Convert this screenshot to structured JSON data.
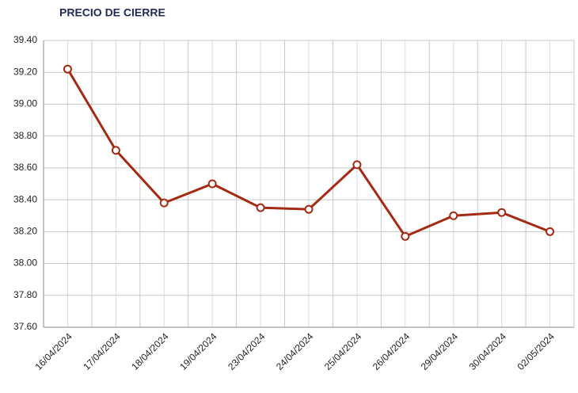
{
  "chart_data": {
    "type": "line",
    "title": "PRECIO DE CIERRE",
    "categories": [
      "16/04/2024",
      "17/04/2024",
      "18/04/2024",
      "19/04/2024",
      "23/04/2024",
      "24/04/2024",
      "25/04/2024",
      "26/04/2024",
      "29/04/2024",
      "30/04/2024",
      "02/05/2024"
    ],
    "series": [
      {
        "name": "Precio de cierre",
        "color": "#a52a14",
        "values": [
          39.22,
          38.71,
          38.38,
          38.5,
          38.35,
          38.34,
          38.62,
          38.17,
          38.3,
          38.32,
          38.2
        ]
      }
    ],
    "ylim": [
      37.6,
      39.4
    ],
    "yticks": [
      {
        "value": 37.6,
        "label": "37.60"
      },
      {
        "value": 37.8,
        "label": "37.80"
      },
      {
        "value": 38.0,
        "label": "38.00"
      },
      {
        "value": 38.2,
        "label": "38.20"
      },
      {
        "value": 38.4,
        "label": "38.40"
      },
      {
        "value": 38.6,
        "label": "38.60"
      },
      {
        "value": 38.8,
        "label": "38.80"
      },
      {
        "value": 39.0,
        "label": "39.00"
      },
      {
        "value": 39.2,
        "label": "39.20"
      },
      {
        "value": 39.4,
        "label": "39.40"
      }
    ],
    "grid": true
  }
}
